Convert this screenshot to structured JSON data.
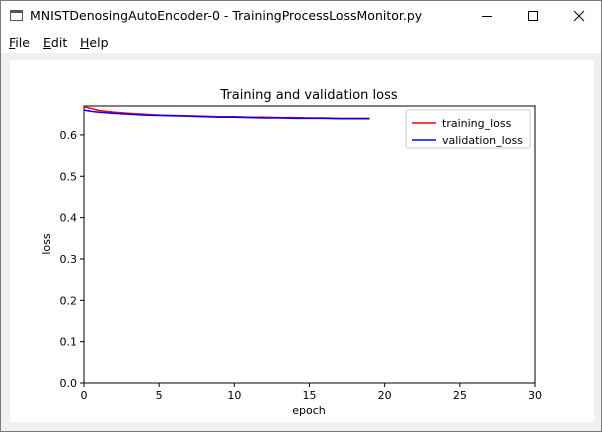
{
  "window": {
    "title": "MNISTDenosingAutoEncoder-0 - TrainingProcessLossMonitor.py",
    "controls": [
      "minimize-icon",
      "maximize-icon",
      "close-icon"
    ]
  },
  "menu": {
    "file": {
      "mnemonic": "F",
      "rest": "ile"
    },
    "edit": {
      "mnemonic": "E",
      "rest": "dit"
    },
    "help": {
      "mnemonic": "H",
      "rest": "elp"
    }
  },
  "chart_data": {
    "type": "line",
    "title": "Training and validation loss",
    "xlabel": "epoch",
    "ylabel": "loss",
    "xlim": [
      0,
      30
    ],
    "ylim": [
      0,
      0.67
    ],
    "xticks": [
      0,
      5,
      10,
      15,
      20,
      25,
      30
    ],
    "xtick_labels": [
      "0",
      "5",
      "10",
      "15",
      "20",
      "25",
      "30"
    ],
    "yticks": [
      0.0,
      0.1,
      0.2,
      0.3,
      0.4,
      0.5,
      0.6
    ],
    "ytick_labels": [
      "0.0",
      "0.1",
      "0.2",
      "0.3",
      "0.4",
      "0.5",
      "0.6"
    ],
    "grid": false,
    "legend_position": "top-right",
    "series": [
      {
        "name": "training_loss",
        "color": "#ff0000",
        "x": [
          0,
          0.5,
          1,
          2,
          3,
          4,
          5,
          6,
          7,
          8,
          9,
          10,
          11,
          12,
          13,
          14,
          15,
          16,
          17,
          18,
          19
        ],
        "y": [
          0.668,
          0.664,
          0.659,
          0.655,
          0.652,
          0.65,
          0.648,
          0.647,
          0.646,
          0.645,
          0.644,
          0.644,
          0.643,
          0.643,
          0.642,
          0.642,
          0.641,
          0.641,
          0.64,
          0.64,
          0.64
        ]
      },
      {
        "name": "validation_loss",
        "color": "#0000ff",
        "x": [
          0,
          0.5,
          1,
          2,
          3,
          4,
          5,
          6,
          7,
          8,
          9,
          10,
          11,
          12,
          13,
          14,
          15,
          16,
          17,
          18,
          19
        ],
        "y": [
          0.66,
          0.657,
          0.655,
          0.652,
          0.65,
          0.648,
          0.647,
          0.646,
          0.645,
          0.644,
          0.643,
          0.643,
          0.642,
          0.641,
          0.641,
          0.64,
          0.64,
          0.64,
          0.639,
          0.639,
          0.639
        ]
      }
    ]
  }
}
